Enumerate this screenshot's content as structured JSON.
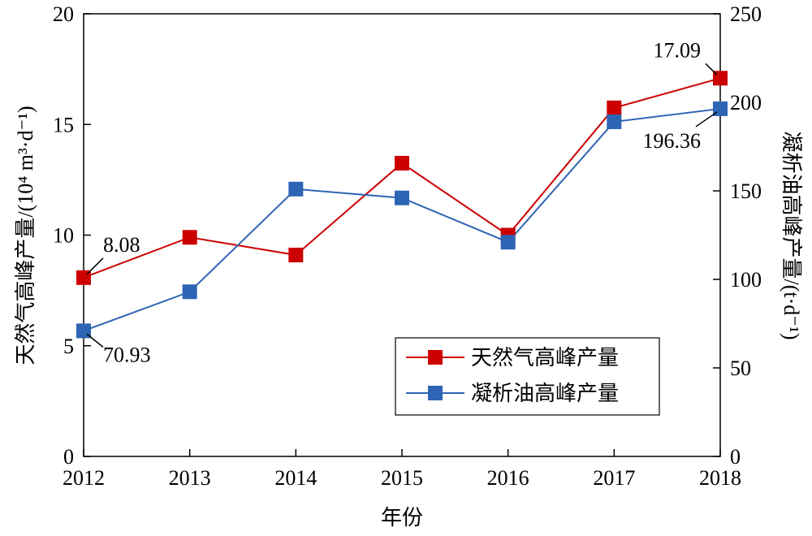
{
  "chart_data": {
    "type": "line",
    "xlabel": "年份",
    "ylabel_left": "天然气高峰产量/(10⁴ m³·d⁻¹)",
    "ylabel_right": "凝析油高峰产量/(t·d⁻¹)",
    "categories": [
      "2012",
      "2013",
      "2014",
      "2015",
      "2016",
      "2017",
      "2018"
    ],
    "ylim_left": [
      0,
      20
    ],
    "ylim_right": [
      0,
      250
    ],
    "yticks_left": [
      "0",
      "5",
      "10",
      "15",
      "20"
    ],
    "yticks_right": [
      "0",
      "50",
      "100",
      "150",
      "200",
      "250"
    ],
    "grid": false,
    "legend_position": "center-right",
    "series": [
      {
        "name": "天然气高峰产量",
        "axis": "left",
        "color": "#cc0000",
        "values": [
          8.08,
          9.9,
          9.1,
          13.25,
          10.0,
          15.75,
          17.09
        ]
      },
      {
        "name": "凝析油高峰产量",
        "axis": "right",
        "color": "#2e64b4",
        "values": [
          70.93,
          93.0,
          151.0,
          146.0,
          121.0,
          189.0,
          196.36
        ]
      }
    ],
    "annotations": [
      {
        "text": "8.08",
        "series": 0,
        "index": 0
      },
      {
        "text": "70.93",
        "series": 1,
        "index": 0
      },
      {
        "text": "17.09",
        "series": 0,
        "index": 6
      },
      {
        "text": "196.36",
        "series": 1,
        "index": 6
      }
    ]
  }
}
